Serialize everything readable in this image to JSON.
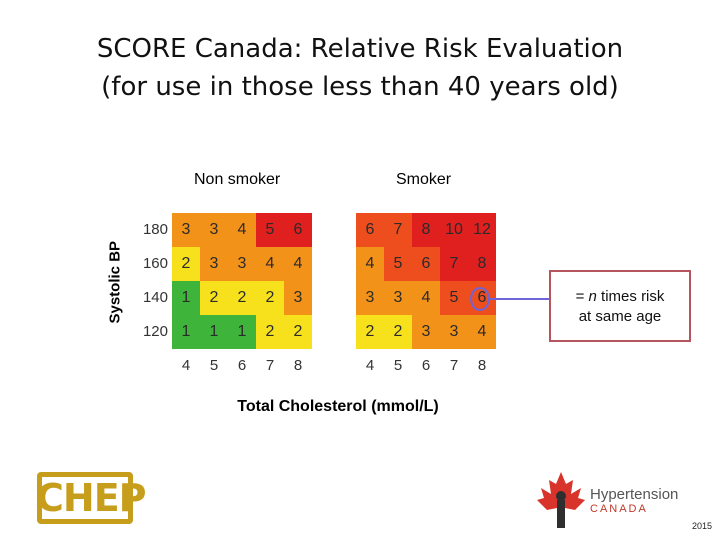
{
  "title": {
    "line1": "SCORE Canada: Relative Risk Evaluation",
    "line2": "(for use in those less than 40 years old)"
  },
  "colors": {
    "green": "#3fb43a",
    "yellow": "#f7e11d",
    "orange": "#f39219",
    "red_orange": "#ee4d1d",
    "red": "#e01f1f",
    "callout_border": "#b5555f",
    "ring": "#6e64d8",
    "chep_gold": "#c79d1c"
  },
  "chart_data": {
    "type": "heatmap",
    "ylabel": "Systolic BP",
    "xlabel": "Total Cholesterol (mmol/L)",
    "rows": [
      "180",
      "160",
      "140",
      "120"
    ],
    "panels": [
      {
        "name": "Non smoker",
        "columns": [
          "4",
          "5",
          "6",
          "7",
          "8"
        ],
        "values": [
          [
            "3",
            "3",
            "4",
            "5",
            "6"
          ],
          [
            "2",
            "3",
            "3",
            "4",
            "4"
          ],
          [
            "1",
            "2",
            "2",
            "2",
            "3"
          ],
          [
            "1",
            "1",
            "1",
            "2",
            "2"
          ]
        ],
        "cell_colors": [
          [
            "orange",
            "orange",
            "orange",
            "red",
            "red"
          ],
          [
            "yellow",
            "orange",
            "orange",
            "orange",
            "orange"
          ],
          [
            "green",
            "yellow",
            "yellow",
            "yellow",
            "orange"
          ],
          [
            "green",
            "green",
            "green",
            "yellow",
            "yellow"
          ]
        ]
      },
      {
        "name": "Smoker",
        "columns": [
          "4",
          "5",
          "6",
          "7",
          "8"
        ],
        "values": [
          [
            "6",
            "7",
            "8",
            "10",
            "12"
          ],
          [
            "4",
            "5",
            "6",
            "7",
            "8"
          ],
          [
            "3",
            "3",
            "4",
            "5",
            "6"
          ],
          [
            "2",
            "2",
            "3",
            "3",
            "4"
          ]
        ],
        "cell_colors": [
          [
            "red_orange",
            "red_orange",
            "red",
            "red",
            "red"
          ],
          [
            "orange",
            "red_orange",
            "red_orange",
            "red",
            "red"
          ],
          [
            "orange",
            "orange",
            "orange",
            "red_orange",
            "red_orange"
          ],
          [
            "yellow",
            "yellow",
            "orange",
            "orange",
            "orange"
          ]
        ]
      }
    ],
    "annotation": {
      "text_prefix": "= ",
      "text_italic": "n",
      "text_suffix": " times risk",
      "text_line2": "at same age"
    }
  },
  "logos": {
    "chep": "CHEP",
    "hypertension_name": "Hypertension",
    "hypertension_country": "CANADA"
  },
  "footer": {
    "year": "2015"
  }
}
